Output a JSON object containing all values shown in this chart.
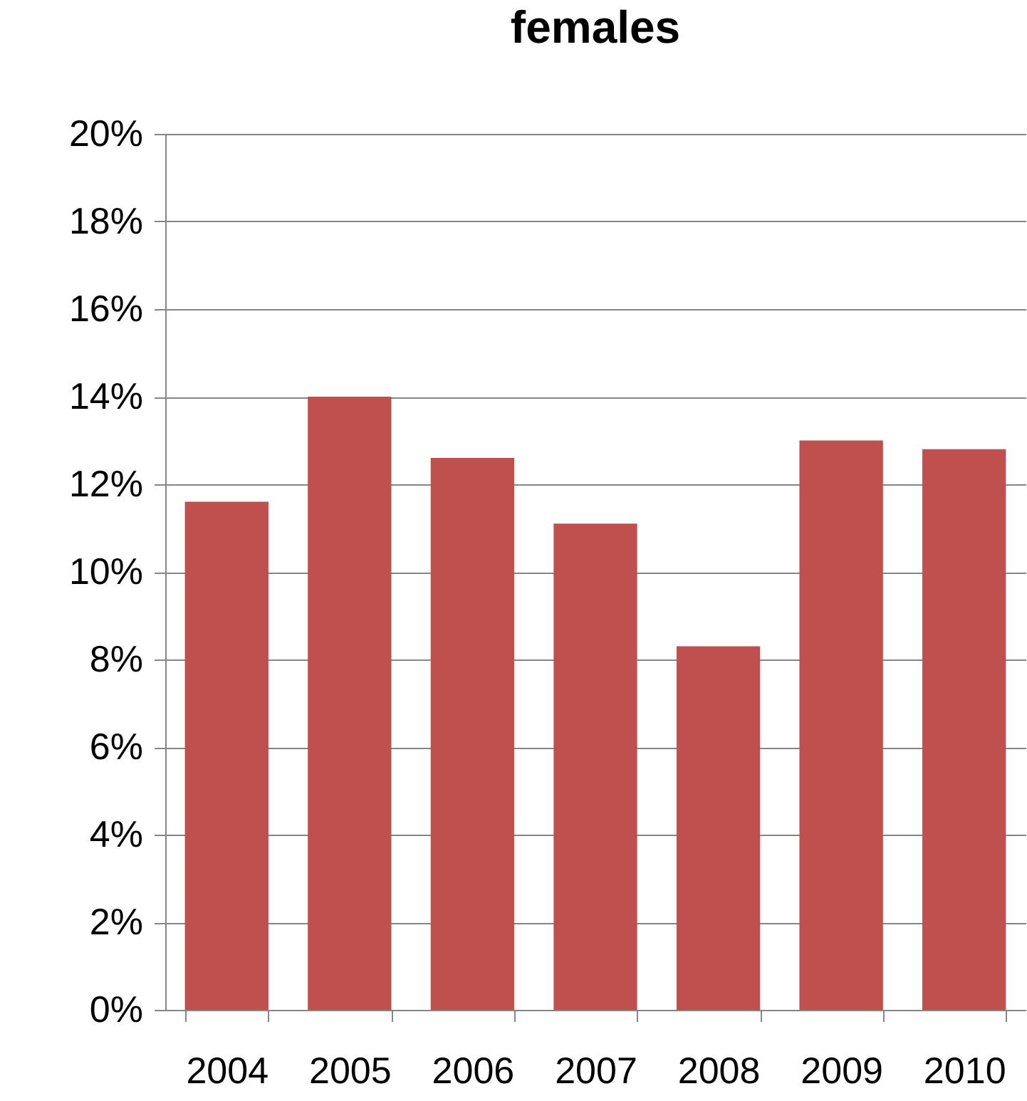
{
  "chart_data": {
    "type": "bar",
    "title": "females",
    "categories": [
      "2004",
      "2005",
      "2006",
      "2007",
      "2008",
      "2009",
      "2010"
    ],
    "values": [
      11.6,
      14.0,
      12.6,
      11.1,
      8.3,
      13.0,
      12.8
    ],
    "color": "#c0504d",
    "ylim": [
      0,
      20
    ],
    "yticks": [
      {
        "value": 0,
        "label": "0%"
      },
      {
        "value": 2,
        "label": "2%"
      },
      {
        "value": 4,
        "label": "4%"
      },
      {
        "value": 6,
        "label": "6%"
      },
      {
        "value": 8,
        "label": "8%"
      },
      {
        "value": 10,
        "label": "10%"
      },
      {
        "value": 12,
        "label": "12%"
      },
      {
        "value": 14,
        "label": "14%"
      },
      {
        "value": 16,
        "label": "16%"
      },
      {
        "value": 18,
        "label": "18%"
      },
      {
        "value": 20,
        "label": "20%"
      }
    ],
    "grid": "y"
  }
}
